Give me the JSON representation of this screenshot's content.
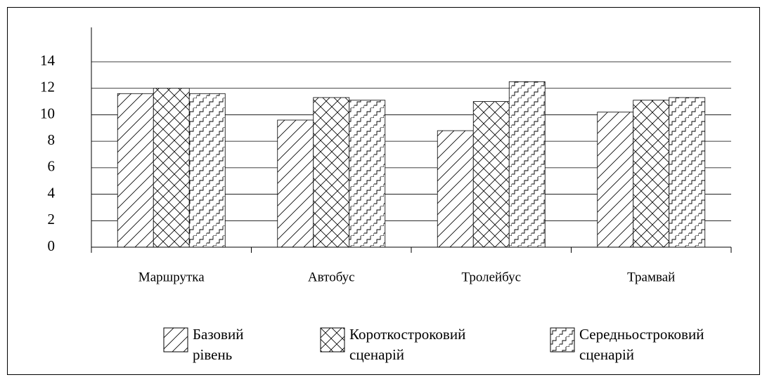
{
  "chart_data": {
    "type": "bar",
    "categories": [
      "Маршрутка",
      "Автобус",
      "Тролейбус",
      "Трамвай"
    ],
    "series": [
      {
        "name": "Базовий рівень",
        "color": "#000000",
        "pattern": "diagonal",
        "values": [
          11.6,
          9.6,
          8.8,
          10.2
        ]
      },
      {
        "name": "Короткостроковий сценарій",
        "color": "#000000",
        "pattern": "cross",
        "values": [
          12.0,
          11.3,
          11.0,
          11.1
        ]
      },
      {
        "name": "Середньостроковий сценарій",
        "color": "#000000",
        "pattern": "stairs",
        "values": [
          11.6,
          11.1,
          12.5,
          11.3
        ]
      }
    ],
    "ylim": [
      0,
      16.6
    ],
    "yticks": [
      0,
      2,
      4,
      6,
      8,
      10,
      12,
      14
    ],
    "grid": true,
    "legend": "bottom"
  }
}
